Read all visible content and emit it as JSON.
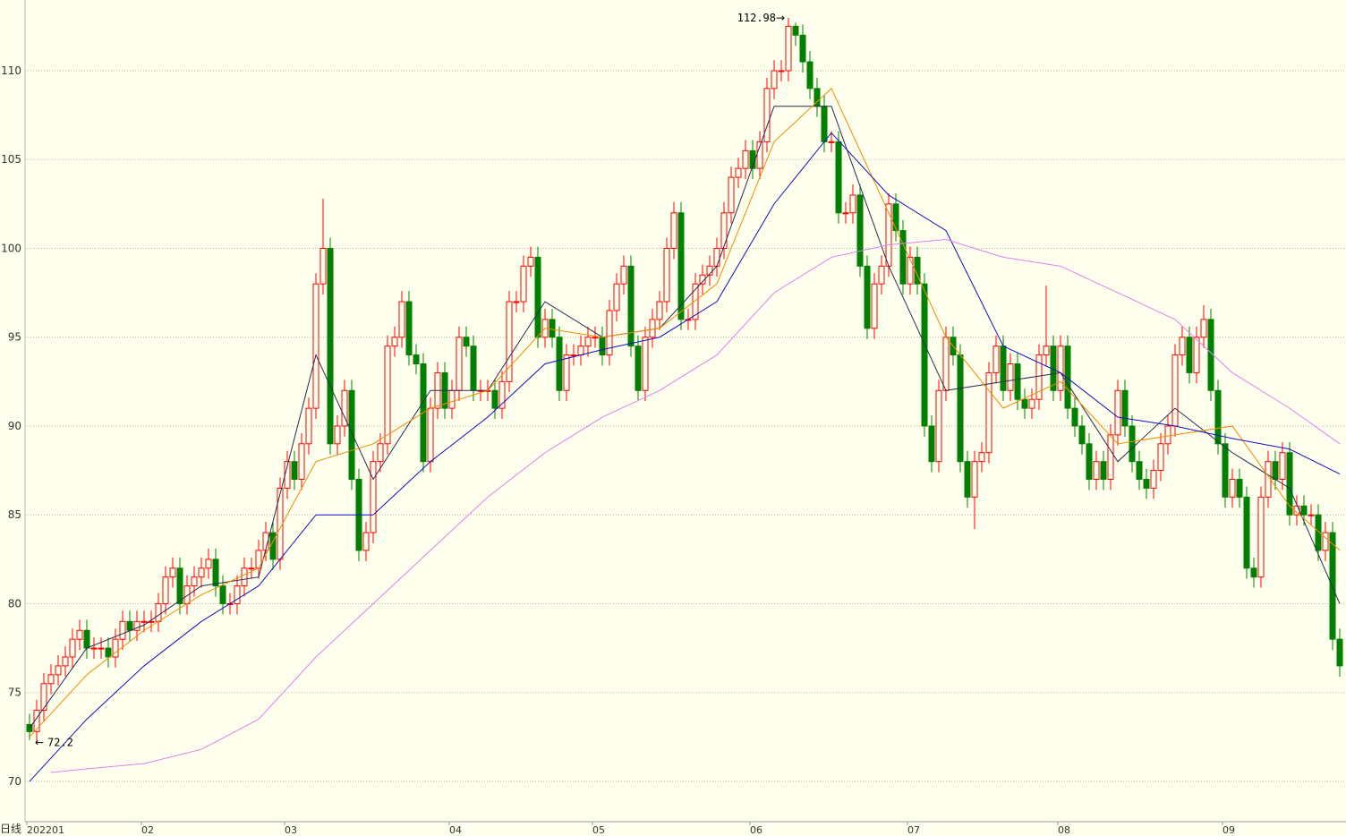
{
  "chart_data": {
    "type": "candlestick",
    "period_label": "日线",
    "up_color": "#ff0000",
    "down_color": "#008000",
    "grid": true,
    "ylim": [
      67.73,
      113.98
    ],
    "yticks": [
      70,
      75,
      80,
      85,
      90,
      95,
      100,
      105,
      110
    ],
    "categories": [
      "202201",
      null,
      null,
      null,
      null,
      null,
      null,
      null,
      null,
      null,
      null,
      null,
      null,
      null,
      null,
      null,
      "02",
      null,
      null,
      null,
      null,
      null,
      null,
      null,
      null,
      null,
      null,
      null,
      null,
      null,
      null,
      null,
      null,
      null,
      null,
      null,
      "03",
      null,
      null,
      null,
      null,
      null,
      null,
      null,
      null,
      null,
      null,
      null,
      null,
      null,
      null,
      null,
      null,
      null,
      null,
      null,
      null,
      null,
      null,
      "04",
      null,
      null,
      null,
      null,
      null,
      null,
      null,
      null,
      null,
      null,
      null,
      null,
      null,
      null,
      null,
      null,
      null,
      null,
      null,
      "05",
      null,
      null,
      null,
      null,
      null,
      null,
      null,
      null,
      null,
      null,
      null,
      null,
      null,
      null,
      null,
      null,
      null,
      null,
      null,
      null,
      null,
      "06",
      null,
      null,
      null,
      null,
      null,
      null,
      null,
      null,
      null,
      null,
      null,
      null,
      null,
      null,
      null,
      null,
      null,
      null,
      null,
      null,
      null,
      "07",
      null,
      null,
      null,
      null,
      null,
      null,
      null,
      null,
      null,
      null,
      null,
      null,
      null,
      null,
      null,
      null,
      null,
      null,
      null,
      null,
      "08",
      null,
      null,
      null,
      null,
      null,
      null,
      null,
      null,
      null,
      null,
      null,
      null,
      null,
      null,
      null,
      null,
      null,
      null,
      null,
      null,
      null,
      null,
      "09",
      null,
      null,
      null,
      null,
      null,
      null,
      null,
      null,
      null,
      null,
      null,
      null,
      null,
      null,
      null,
      null
    ],
    "open": [
      73.2,
      72.8,
      74,
      75.5,
      76,
      76.5,
      77,
      78,
      78.5,
      77.5,
      77.5,
      77.5,
      77,
      78,
      79,
      78.5,
      79,
      79,
      79,
      80,
      81.5,
      82,
      80,
      81,
      81.5,
      82,
      82.5,
      81,
      80,
      80,
      81,
      82,
      82,
      83,
      84,
      82.5,
      86.5,
      88,
      87,
      89,
      91,
      98,
      100,
      89,
      90,
      92,
      87,
      83,
      84,
      88,
      89,
      94.5,
      95,
      97,
      94,
      93.5,
      88,
      91,
      93,
      91,
      92,
      95,
      94.5,
      92,
      92,
      92,
      91,
      92.5,
      97,
      97,
      99,
      99.5,
      95,
      96,
      95,
      92,
      94,
      94,
      94.5,
      95,
      95,
      94,
      96.5,
      98,
      99,
      94.5,
      92,
      95,
      96,
      97,
      100,
      102,
      96,
      96,
      98,
      98.5,
      99,
      100,
      102,
      104,
      104.5,
      105.5,
      104.5,
      106,
      109,
      110,
      110,
      112.5,
      112,
      110.5,
      109,
      108,
      106,
      106,
      102,
      102,
      103,
      99,
      95.5,
      98,
      99,
      102.5,
      101,
      98,
      99.5,
      98,
      90,
      88,
      92,
      95,
      94,
      88,
      86,
      88,
      88.5,
      93,
      94.5,
      92,
      93.5,
      91.5,
      91,
      91.5,
      94,
      94.5,
      92,
      94.5,
      91,
      90,
      89,
      87,
      88,
      87,
      89.5,
      92,
      90,
      88,
      87,
      86.5,
      87.5,
      89,
      90,
      94,
      95,
      93,
      95,
      96,
      92,
      89,
      86,
      87,
      86,
      82,
      81.5,
      86,
      88,
      87,
      88.5,
      85,
      85.5,
      85,
      85,
      83,
      84,
      78
    ],
    "high": [
      73.8,
      74.6,
      76.1,
      76.6,
      77.1,
      77.6,
      78.6,
      79.1,
      79.1,
      78.1,
      78.1,
      78.1,
      78.6,
      79.6,
      79.6,
      79.6,
      79.6,
      79.6,
      80.6,
      82.1,
      82.6,
      82.6,
      81.6,
      82.1,
      82.6,
      83.1,
      83.1,
      81.6,
      80.6,
      81.6,
      82.6,
      82.6,
      83.6,
      84.6,
      84.6,
      87.1,
      88.6,
      88.6,
      89.6,
      91.6,
      98.6,
      102.8,
      100.6,
      90.6,
      92.6,
      92.6,
      87.6,
      84.6,
      88.6,
      89.6,
      95.1,
      95.6,
      97.6,
      97.6,
      94.6,
      94.1,
      91.6,
      93.6,
      93.6,
      92.6,
      95.6,
      95.6,
      95.1,
      92.6,
      92.6,
      92.6,
      93.1,
      97.6,
      97.6,
      99.6,
      100.1,
      100.1,
      96.6,
      96.6,
      95.6,
      94.6,
      94.6,
      95.1,
      95.6,
      95.6,
      95.6,
      97.1,
      98.6,
      99.6,
      99.6,
      95.1,
      95.6,
      96.6,
      97.6,
      100.6,
      102.6,
      102.6,
      96.6,
      98.6,
      99.1,
      99.6,
      100.6,
      102.6,
      104.6,
      105.1,
      106.1,
      106.1,
      106.6,
      109.6,
      110.6,
      110.6,
      112.98,
      112.7,
      112.6,
      111.1,
      109.6,
      108.6,
      106.6,
      106.6,
      102.6,
      103.6,
      103.6,
      99.6,
      98.6,
      99.6,
      103.1,
      103.1,
      101.6,
      100.1,
      100.1,
      98.6,
      90.6,
      92.6,
      95.6,
      95.6,
      94.6,
      88.6,
      88.6,
      89.1,
      93.6,
      95.1,
      95.1,
      94.1,
      94.1,
      92.1,
      92.1,
      94.6,
      97.9,
      95.1,
      95.1,
      95.1,
      91.6,
      90.6,
      89.6,
      88.6,
      88.6,
      90.1,
      92.6,
      92.6,
      90.6,
      88.6,
      87.6,
      88.1,
      89.6,
      90.6,
      94.6,
      95.6,
      95.6,
      95.6,
      96.8,
      96.6,
      92.6,
      89.6,
      87.6,
      87.6,
      86.6,
      82.6,
      86.6,
      88.6,
      88.6,
      89.1,
      89.1,
      86.1,
      86.1,
      85.6,
      85.6,
      84.6,
      84.6,
      78.6
    ],
    "low": [
      72.32,
      72.2,
      73.4,
      74.9,
      75.4,
      75.9,
      76.4,
      77.4,
      76.9,
      76.9,
      76.9,
      76.4,
      76.4,
      77.4,
      77.9,
      77.9,
      78.4,
      78.4,
      78.4,
      79.4,
      80.9,
      79.4,
      79.4,
      80.4,
      80.9,
      81.4,
      80.4,
      79.4,
      79.4,
      79.4,
      80.4,
      81.4,
      81.4,
      82.4,
      81.9,
      81.9,
      85.9,
      86.4,
      86.4,
      88.4,
      90.4,
      97.4,
      88.4,
      88.4,
      89.4,
      86.4,
      82.4,
      82.4,
      83.4,
      87.4,
      88.4,
      93.9,
      94.4,
      93.4,
      92.9,
      87.4,
      87.4,
      90.4,
      90.4,
      90.4,
      91.4,
      93.9,
      91.4,
      91.4,
      91.4,
      90.4,
      90.4,
      91.9,
      96.4,
      96.4,
      98.4,
      94.4,
      94.4,
      94.4,
      91.4,
      91.4,
      93.4,
      93.4,
      93.9,
      94.4,
      93.4,
      93.4,
      95.9,
      97.4,
      93.9,
      91.4,
      91.4,
      94.4,
      95.4,
      96.4,
      99.4,
      95.4,
      95.4,
      95.4,
      97.4,
      97.9,
      98.4,
      99.4,
      101.4,
      103.4,
      103.9,
      103.9,
      103.9,
      105.4,
      108.4,
      109.4,
      109.4,
      111.4,
      109.9,
      108.4,
      107.4,
      105.4,
      105.4,
      101.4,
      101.4,
      101.4,
      98.4,
      94.9,
      94.9,
      97.4,
      98.4,
      100.4,
      97.4,
      97.4,
      97.4,
      89.4,
      87.4,
      87.4,
      91.4,
      93.4,
      87.4,
      85.4,
      84.2,
      87.4,
      87.9,
      92.4,
      91.4,
      91.4,
      90.9,
      90.4,
      90.4,
      90.9,
      93.4,
      91.4,
      91.4,
      90.4,
      89.4,
      88.4,
      86.4,
      86.4,
      86.4,
      86.4,
      88.9,
      89.4,
      87.4,
      86.4,
      85.9,
      85.9,
      86.9,
      88.4,
      89.4,
      93.4,
      92.4,
      92.4,
      94.4,
      91.4,
      88.4,
      85.4,
      85.4,
      85.4,
      81.4,
      80.9,
      80.9,
      85.4,
      86.4,
      86.4,
      84.4,
      84.4,
      84.4,
      84.4,
      82.4,
      82.4,
      77.4,
      75.9
    ],
    "close": [
      72.8,
      74,
      75.5,
      76,
      76.5,
      77,
      78,
      78.5,
      77.5,
      77.5,
      77.5,
      77,
      78,
      79,
      78.5,
      79,
      79,
      79,
      80,
      81.5,
      82,
      80,
      81,
      81.5,
      82,
      82.5,
      81,
      80,
      80,
      81,
      82,
      82,
      83,
      84,
      82.5,
      86.5,
      88,
      87,
      89,
      91,
      98,
      100,
      89,
      90,
      92,
      87,
      83,
      84,
      88,
      89,
      94.5,
      95,
      97,
      94,
      93.5,
      88,
      91,
      93,
      91,
      92,
      95,
      94.5,
      92,
      92,
      92,
      91,
      92.5,
      97,
      97,
      99,
      99.5,
      95,
      96,
      95,
      92,
      94,
      94,
      94.5,
      95,
      95,
      94,
      96.5,
      98,
      99,
      94.5,
      92,
      95,
      96,
      97,
      100,
      102,
      96,
      96,
      98,
      98.5,
      99,
      100,
      102,
      104,
      104.5,
      105.5,
      104.5,
      106,
      109,
      110,
      110,
      112.5,
      112,
      110.5,
      109,
      108,
      106,
      106,
      102,
      102,
      103,
      99,
      95.5,
      98,
      99,
      102.5,
      101,
      98,
      99.5,
      98,
      90,
      88,
      92,
      95,
      94,
      88,
      86,
      88,
      88.5,
      93,
      94.5,
      92,
      93.5,
      91.5,
      91,
      91.5,
      94,
      94.5,
      92,
      94.5,
      91,
      90,
      89,
      87,
      88,
      87,
      89.5,
      92,
      90,
      88,
      87,
      86.5,
      87.5,
      89,
      90,
      94,
      95,
      93,
      95,
      96,
      92,
      89,
      86,
      87,
      86,
      82,
      81.5,
      86,
      88,
      87,
      88.5,
      85,
      85.5,
      85,
      85,
      83,
      84,
      78,
      76.5
    ],
    "lines": [
      {
        "color": "#2a2a55",
        "x": [
          0,
          8,
          16,
          24,
          32,
          40,
          48,
          56,
          64,
          72,
          80,
          88,
          96,
          104,
          112,
          120,
          128,
          136,
          144,
          152,
          160,
          168,
          176,
          183
        ],
        "values": [
          73,
          77.5,
          78.8,
          81,
          81.5,
          94,
          87,
          92,
          92,
          97,
          95,
          95.5,
          99,
          108,
          108,
          99,
          92,
          92.5,
          93,
          88,
          91,
          88.5,
          86.5,
          80
        ]
      },
      {
        "color": "#f08c00",
        "x": [
          0,
          8,
          16,
          24,
          32,
          40,
          48,
          56,
          64,
          72,
          80,
          88,
          96,
          104,
          112,
          120,
          128,
          136,
          144,
          152,
          160,
          168,
          176,
          183
        ],
        "values": [
          72.5,
          76,
          78.5,
          80.5,
          82,
          88,
          89,
          91,
          92,
          95.5,
          95,
          95.5,
          98,
          106,
          109,
          102,
          95,
          91,
          92.5,
          89,
          89.5,
          90,
          85.5,
          83
        ]
      },
      {
        "color": "#1010c0",
        "x": [
          0,
          8,
          16,
          24,
          32,
          40,
          48,
          56,
          64,
          72,
          80,
          88,
          96,
          104,
          112,
          120,
          128,
          136,
          144,
          152,
          160,
          168,
          176,
          183
        ],
        "values": [
          70,
          73.5,
          76.5,
          79,
          81,
          85,
          85,
          88,
          90.5,
          93.5,
          94.3,
          95,
          97,
          102.5,
          106.5,
          103,
          101,
          94.5,
          93,
          90.5,
          90,
          89.3,
          88.7,
          87.3
        ]
      },
      {
        "color": "#e080f0",
        "x": [
          3,
          8,
          16,
          24,
          32,
          40,
          48,
          56,
          64,
          72,
          80,
          88,
          96,
          104,
          112,
          120,
          128,
          136,
          144,
          152,
          160,
          168,
          176,
          183
        ],
        "values": [
          70.5,
          70.7,
          71,
          71.8,
          73.5,
          77,
          80,
          83,
          86,
          88.5,
          90.5,
          92,
          94,
          97.5,
          99.5,
          100.2,
          100.5,
          99.5,
          99,
          97.5,
          96,
          93,
          91,
          89
        ]
      }
    ]
  }
}
